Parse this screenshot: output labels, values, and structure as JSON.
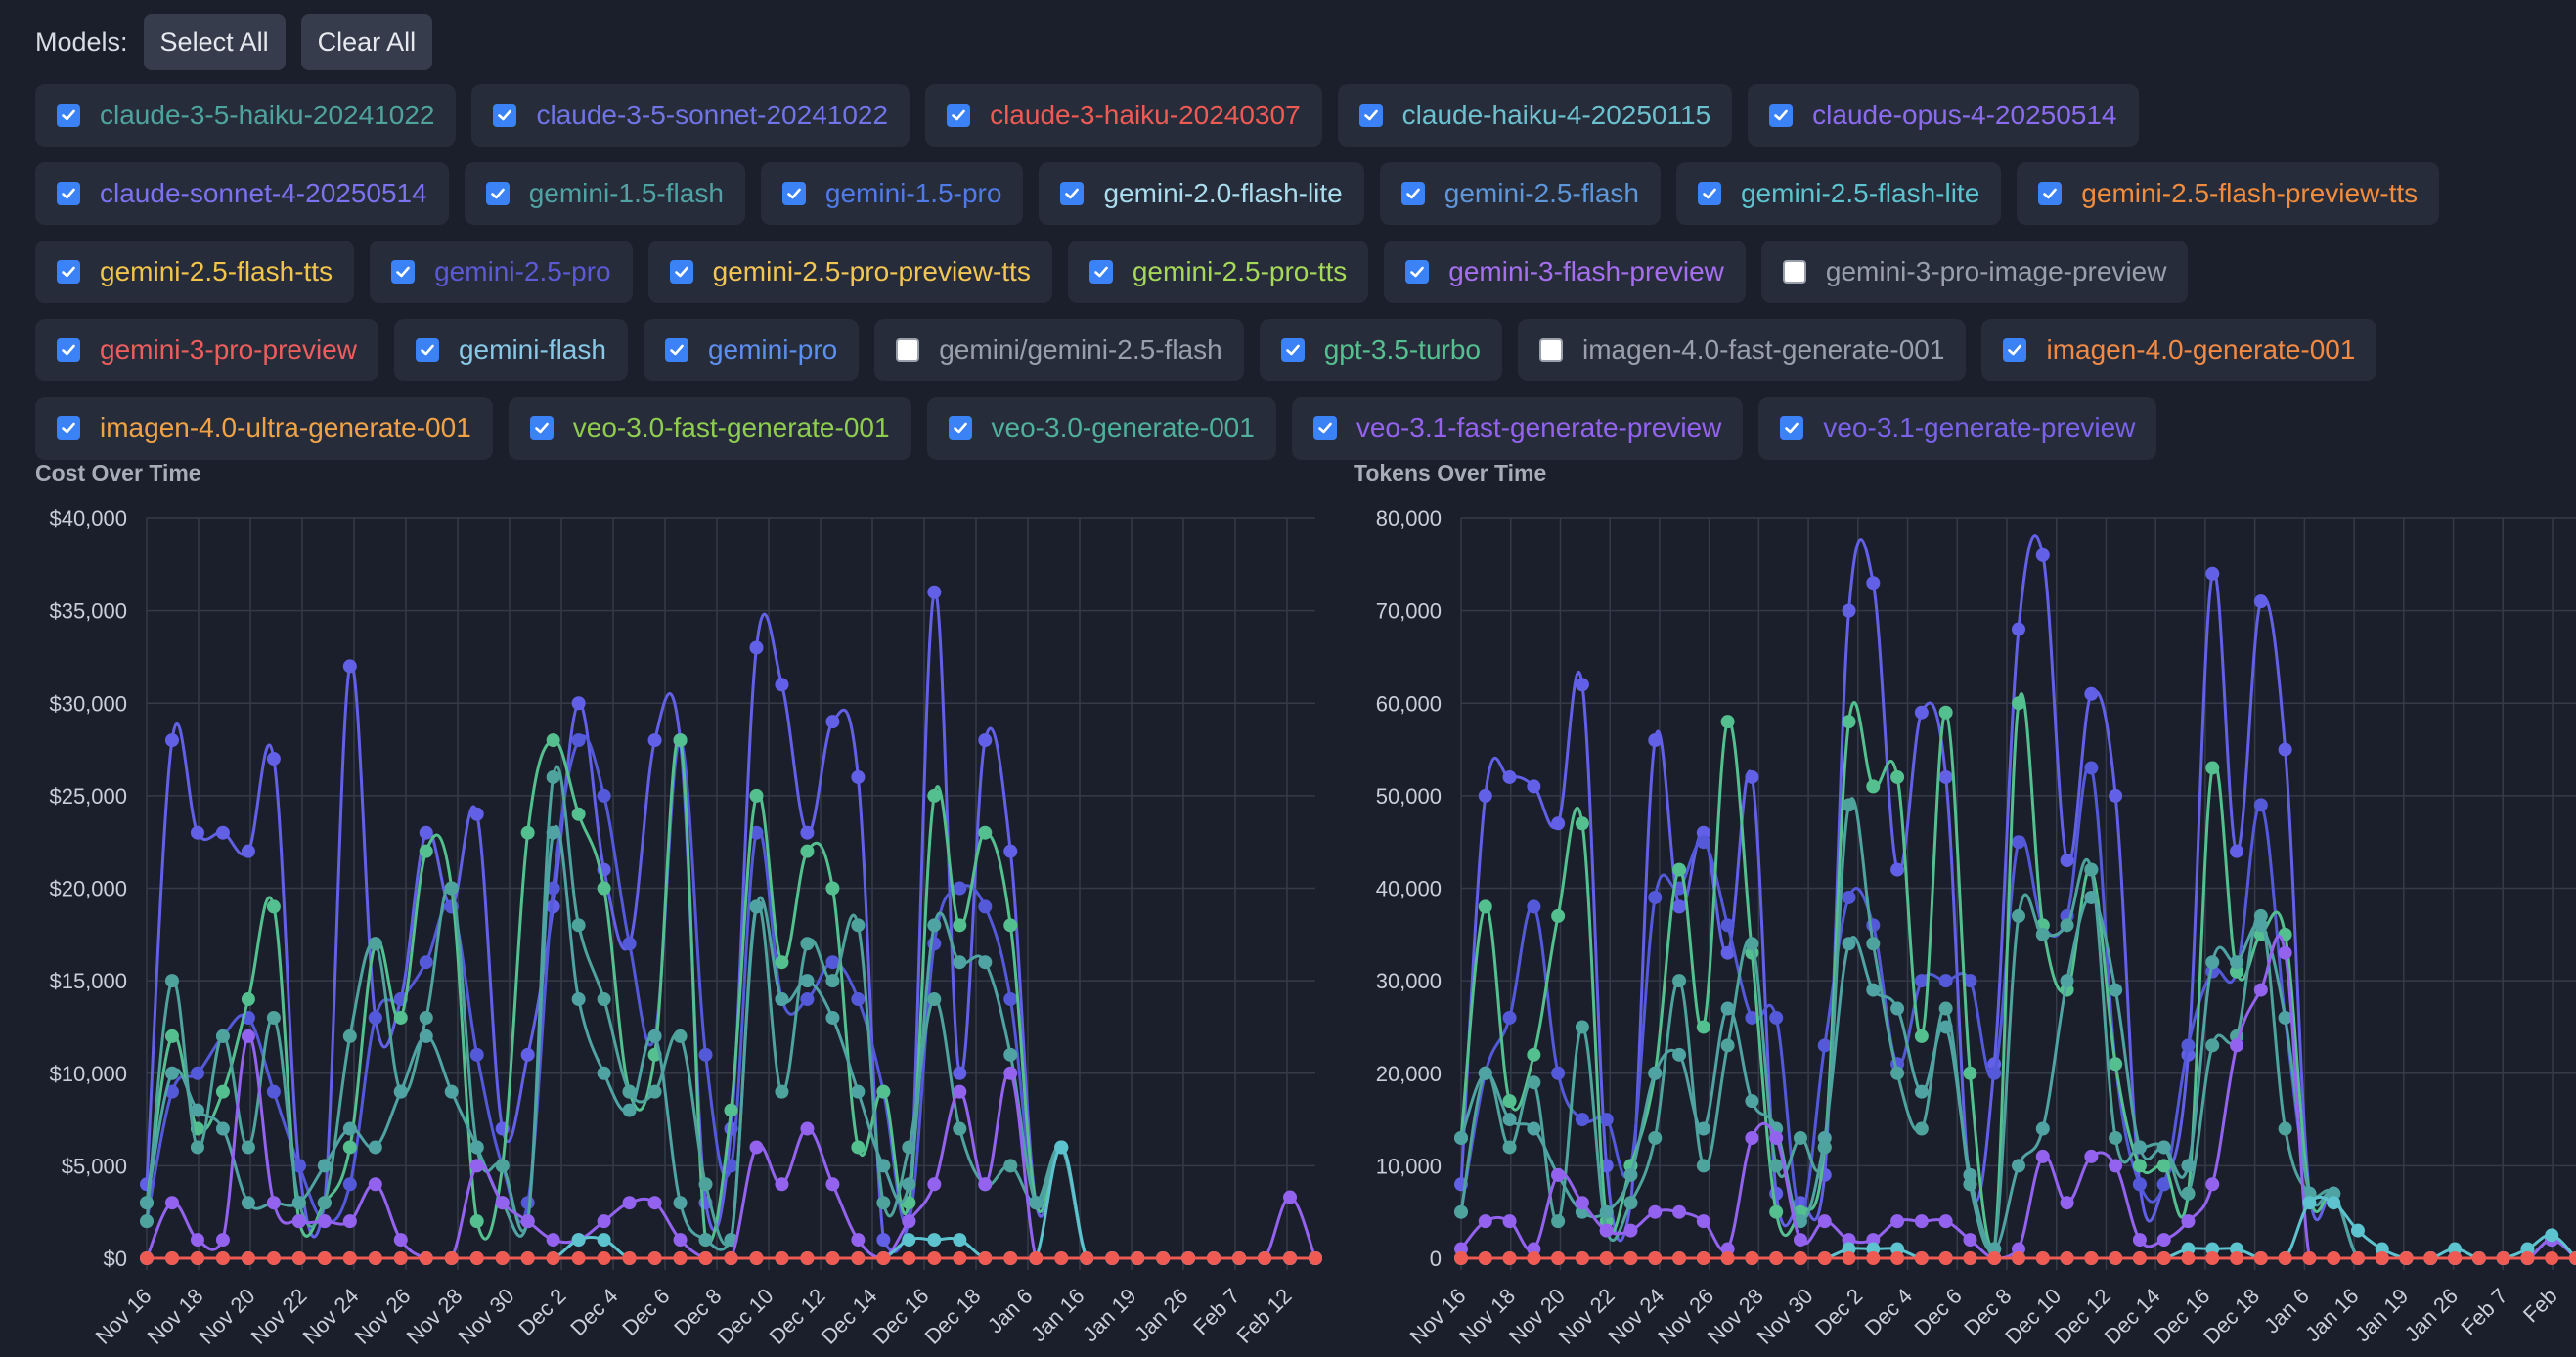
{
  "toolbar": {
    "label": "Models:",
    "select_all": "Select All",
    "clear_all": "Clear All"
  },
  "models": [
    {
      "name": "claude-3-5-haiku-20241022",
      "checked": true,
      "color": "#4ea39d",
      "row": 0
    },
    {
      "name": "claude-3-5-sonnet-20241022",
      "checked": true,
      "color": "#7074e6",
      "row": 0
    },
    {
      "name": "claude-3-haiku-20240307",
      "checked": true,
      "color": "#ef5a52",
      "row": 0
    },
    {
      "name": "claude-haiku-4-20250115",
      "checked": true,
      "color": "#6cc1cf",
      "row": 0
    },
    {
      "name": "claude-opus-4-20250514",
      "checked": true,
      "color": "#8b6cf0",
      "row": 0
    },
    {
      "name": "claude-sonnet-4-20250514",
      "checked": true,
      "color": "#7a72ef",
      "row": 1
    },
    {
      "name": "gemini-1.5-flash",
      "checked": true,
      "color": "#4fa3a3",
      "row": 1
    },
    {
      "name": "gemini-1.5-pro",
      "checked": true,
      "color": "#4f7be9",
      "row": 1
    },
    {
      "name": "gemini-2.0-flash-lite",
      "checked": true,
      "color": "#a9dcec",
      "row": 1
    },
    {
      "name": "gemini-2.5-flash",
      "checked": true,
      "color": "#5d96d9",
      "row": 1
    },
    {
      "name": "gemini-2.5-flash-lite",
      "checked": true,
      "color": "#5cc3cf",
      "row": 1
    },
    {
      "name": "gemini-2.5-flash-preview-tts",
      "checked": true,
      "color": "#f08c3c",
      "row": 1
    },
    {
      "name": "gemini-2.5-flash-tts",
      "checked": true,
      "color": "#f1c44a",
      "row": 2
    },
    {
      "name": "gemini-2.5-pro",
      "checked": true,
      "color": "#5b59d6",
      "row": 2
    },
    {
      "name": "gemini-2.5-pro-preview-tts",
      "checked": true,
      "color": "#f3c653",
      "row": 2
    },
    {
      "name": "gemini-2.5-pro-tts",
      "checked": true,
      "color": "#a6d859",
      "row": 2
    },
    {
      "name": "gemini-3-flash-preview",
      "checked": true,
      "color": "#a66ff0",
      "row": 2
    },
    {
      "name": "gemini-3-pro-image-preview",
      "checked": false,
      "color": "#9aa0ab",
      "row": 2
    },
    {
      "name": "gemini-3-pro-preview",
      "checked": true,
      "color": "#ee5d5d",
      "row": 3
    },
    {
      "name": "gemini-flash",
      "checked": true,
      "color": "#86c8e6",
      "row": 3
    },
    {
      "name": "gemini-pro",
      "checked": true,
      "color": "#5c8ff0",
      "row": 3
    },
    {
      "name": "gemini/gemini-2.5-flash",
      "checked": false,
      "color": "#9aa0ab",
      "row": 3
    },
    {
      "name": "gpt-3.5-turbo",
      "checked": true,
      "color": "#54c08f",
      "row": 3
    },
    {
      "name": "imagen-4.0-fast-generate-001",
      "checked": false,
      "color": "#9aa0ab",
      "row": 3
    },
    {
      "name": "imagen-4.0-generate-001",
      "checked": true,
      "color": "#f28a44",
      "row": 3
    },
    {
      "name": "imagen-4.0-ultra-generate-001",
      "checked": true,
      "color": "#f0a346",
      "row": 4
    },
    {
      "name": "veo-3.0-fast-generate-001",
      "checked": true,
      "color": "#8fcd4f",
      "row": 4
    },
    {
      "name": "veo-3.0-generate-001",
      "checked": true,
      "color": "#4fb09b",
      "row": 4
    },
    {
      "name": "veo-3.1-fast-generate-preview",
      "checked": true,
      "color": "#9363f0",
      "row": 4
    },
    {
      "name": "veo-3.1-generate-preview",
      "checked": true,
      "color": "#7b62ea",
      "row": 4
    }
  ],
  "chart_data": [
    {
      "type": "line",
      "title": "Cost Over Time",
      "ylim": [
        0,
        40000
      ],
      "yticks": [
        "$0",
        "$5,000",
        "$10,000",
        "$15,000",
        "$20,000",
        "$25,000",
        "$30,000",
        "$35,000",
        "$40,000"
      ],
      "xticks": [
        "Nov 16",
        "Nov 18",
        "Nov 20",
        "Nov 22",
        "Nov 24",
        "Nov 26",
        "Nov 28",
        "Nov 30",
        "Dec 2",
        "Dec 4",
        "Dec 6",
        "Dec 8",
        "Dec 10",
        "Dec 12",
        "Dec 14",
        "Dec 16",
        "Dec 18",
        "Jan 6",
        "Jan 16",
        "Jan 19",
        "Jan 26",
        "Feb 7",
        "Feb 12"
      ],
      "grid": true,
      "series": [
        {
          "color": "#6360e8",
          "values": [
            4000,
            28000,
            23000,
            23000,
            22000,
            27000,
            5000,
            3000,
            32000,
            13000,
            14000,
            23000,
            19000,
            24000,
            7000,
            11000,
            19000,
            30000,
            21000,
            17000,
            28000,
            28000,
            3000,
            7000,
            33000,
            31000,
            23000,
            29000,
            26000,
            1000,
            2000,
            36000,
            10000,
            28000,
            22000,
            3000,
            6000,
            0,
            0,
            0,
            0,
            0,
            0,
            0,
            0,
            0,
            0
          ]
        },
        {
          "color": "#5459d9",
          "values": [
            2000,
            9000,
            10000,
            12000,
            13000,
            9000,
            5000,
            2000,
            4000,
            13000,
            14000,
            16000,
            19000,
            11000,
            5000,
            3000,
            20000,
            28000,
            25000,
            17000,
            12000,
            28000,
            11000,
            5000,
            23000,
            14000,
            14000,
            16000,
            14000,
            9000,
            2000,
            17000,
            20000,
            19000,
            14000,
            3000,
            6000,
            0,
            0,
            0,
            0,
            0,
            0,
            0,
            0,
            0,
            0
          ]
        },
        {
          "color": "#54c08f",
          "values": [
            3000,
            12000,
            7000,
            9000,
            14000,
            19000,
            2000,
            3000,
            6000,
            17000,
            13000,
            22000,
            20000,
            2000,
            5000,
            23000,
            28000,
            24000,
            20000,
            9000,
            11000,
            28000,
            1000,
            8000,
            25000,
            16000,
            22000,
            20000,
            6000,
            9000,
            3000,
            25000,
            18000,
            23000,
            18000,
            3000,
            6000,
            0,
            0,
            0,
            0,
            0,
            0,
            0,
            0,
            0,
            0
          ]
        },
        {
          "color": "#4ea39d",
          "values": [
            2000,
            15000,
            6000,
            12000,
            6000,
            13000,
            3000,
            3000,
            12000,
            17000,
            9000,
            13000,
            20000,
            6000,
            5000,
            2000,
            26000,
            18000,
            14000,
            9000,
            9000,
            12000,
            4000,
            1000,
            19000,
            9000,
            17000,
            15000,
            18000,
            3000,
            6000,
            14000,
            7000,
            4000,
            5000,
            3000,
            6000,
            0,
            0,
            0,
            0,
            0,
            0,
            0,
            0,
            0,
            0
          ]
        },
        {
          "color": "#4fa3a3",
          "values": [
            3000,
            10000,
            8000,
            7000,
            3000,
            3000,
            3000,
            5000,
            7000,
            6000,
            9000,
            12000,
            9000,
            6000,
            3000,
            2000,
            23000,
            14000,
            10000,
            8000,
            12000,
            3000,
            1000,
            1000,
            19000,
            14000,
            15000,
            13000,
            9000,
            5000,
            4000,
            18000,
            16000,
            16000,
            11000,
            3000,
            6000,
            0,
            0,
            0,
            0,
            0,
            0,
            0,
            0,
            0,
            0
          ]
        },
        {
          "color": "#9363f0",
          "values": [
            0,
            3000,
            1000,
            1000,
            12000,
            3000,
            2000,
            2000,
            2000,
            4000,
            1000,
            0,
            0,
            5000,
            3000,
            2000,
            1000,
            1000,
            2000,
            3000,
            3000,
            1000,
            0,
            0,
            6000,
            4000,
            7000,
            4000,
            1000,
            0,
            2000,
            4000,
            9000,
            4000,
            10000,
            0,
            0,
            0,
            0,
            0,
            0,
            0,
            0,
            0,
            0,
            3300,
            0
          ]
        },
        {
          "color": "#5cc3cf",
          "values": [
            0,
            0,
            0,
            0,
            0,
            0,
            0,
            0,
            0,
            0,
            0,
            0,
            0,
            0,
            0,
            0,
            0,
            1000,
            1000,
            0,
            0,
            0,
            0,
            0,
            0,
            0,
            0,
            0,
            0,
            0,
            1000,
            1000,
            1000,
            0,
            0,
            0,
            6000,
            0,
            0,
            0,
            0,
            0,
            0,
            0,
            0,
            0,
            0
          ]
        },
        {
          "color": "#ef5a52",
          "values": [
            0,
            0,
            0,
            0,
            0,
            0,
            0,
            0,
            0,
            0,
            0,
            0,
            0,
            0,
            0,
            0,
            0,
            0,
            0,
            0,
            0,
            0,
            0,
            0,
            0,
            0,
            0,
            0,
            0,
            0,
            0,
            0,
            0,
            0,
            0,
            0,
            0,
            0,
            0,
            0,
            0,
            0,
            0,
            0,
            0,
            0,
            0
          ]
        }
      ]
    },
    {
      "type": "line",
      "title": "Tokens Over Time",
      "ylim": [
        0,
        80000
      ],
      "yticks": [
        "0",
        "10,000",
        "20,000",
        "30,000",
        "40,000",
        "50,000",
        "60,000",
        "70,000",
        "80,000"
      ],
      "xticks": [
        "Nov 16",
        "Nov 18",
        "Nov 20",
        "Nov 22",
        "Nov 24",
        "Nov 26",
        "Nov 28",
        "Nov 30",
        "Dec 2",
        "Dec 4",
        "Dec 6",
        "Dec 8",
        "Dec 10",
        "Dec 12",
        "Dec 14",
        "Dec 16",
        "Dec 18",
        "Jan 6",
        "Jan 16",
        "Jan 19",
        "Jan 26",
        "Feb 7",
        "Feb"
      ],
      "grid": true,
      "series": [
        {
          "color": "#6360e8",
          "values": [
            8000,
            50000,
            52000,
            51000,
            47000,
            62000,
            10000,
            6000,
            56000,
            38000,
            46000,
            33000,
            52000,
            7000,
            6000,
            9000,
            70000,
            73000,
            42000,
            59000,
            52000,
            8000,
            21000,
            68000,
            76000,
            43000,
            61000,
            50000,
            8000,
            8000,
            22000,
            74000,
            44000,
            71000,
            55000,
            7000,
            7000,
            0,
            0,
            0,
            0,
            0,
            0,
            0,
            0,
            2000,
            0
          ]
        },
        {
          "color": "#5459d9",
          "values": [
            5000,
            20000,
            26000,
            38000,
            20000,
            15000,
            15000,
            10000,
            39000,
            40000,
            45000,
            36000,
            26000,
            26000,
            5000,
            23000,
            39000,
            36000,
            21000,
            30000,
            30000,
            30000,
            20000,
            45000,
            36000,
            37000,
            53000,
            21000,
            8000,
            8000,
            23000,
            31000,
            31000,
            49000,
            26000,
            7000,
            7000,
            0,
            0,
            0,
            0,
            0,
            0,
            0,
            0,
            2000,
            0
          ]
        },
        {
          "color": "#54c08f",
          "values": [
            13000,
            38000,
            17000,
            22000,
            37000,
            47000,
            4000,
            10000,
            20000,
            42000,
            25000,
            58000,
            33000,
            5000,
            5000,
            12000,
            58000,
            51000,
            52000,
            24000,
            59000,
            20000,
            1000,
            60000,
            36000,
            29000,
            42000,
            21000,
            10000,
            10000,
            7000,
            53000,
            31000,
            35000,
            35000,
            7000,
            7000,
            0,
            0,
            0,
            0,
            0,
            0,
            0,
            0,
            2000,
            0
          ]
        },
        {
          "color": "#4ea39d",
          "values": [
            5000,
            20000,
            12000,
            19000,
            4000,
            25000,
            3000,
            6000,
            13000,
            30000,
            10000,
            23000,
            34000,
            10000,
            13000,
            12000,
            49000,
            34000,
            20000,
            14000,
            27000,
            8000,
            1000,
            37000,
            35000,
            36000,
            42000,
            13000,
            12000,
            12000,
            7000,
            23000,
            24000,
            37000,
            14000,
            7000,
            7000,
            0,
            0,
            0,
            0,
            0,
            0,
            0,
            0,
            2000,
            0
          ]
        },
        {
          "color": "#4fa3a3",
          "values": [
            13000,
            20000,
            15000,
            14000,
            9000,
            5000,
            5000,
            9000,
            20000,
            22000,
            14000,
            27000,
            17000,
            14000,
            4000,
            13000,
            34000,
            29000,
            27000,
            18000,
            25000,
            9000,
            1000,
            10000,
            14000,
            30000,
            39000,
            29000,
            12000,
            12000,
            10000,
            32000,
            32000,
            36000,
            26000,
            7000,
            7000,
            0,
            0,
            0,
            0,
            0,
            0,
            0,
            0,
            2000,
            0
          ]
        },
        {
          "color": "#9363f0",
          "values": [
            1000,
            4000,
            4000,
            1000,
            9000,
            6000,
            3000,
            3000,
            5000,
            5000,
            4000,
            1000,
            13000,
            13000,
            2000,
            4000,
            2000,
            2000,
            4000,
            4000,
            4000,
            2000,
            0,
            1000,
            11000,
            6000,
            11000,
            10000,
            2000,
            2000,
            4000,
            8000,
            23000,
            29000,
            33000,
            0,
            0,
            0,
            0,
            0,
            0,
            0,
            0,
            0,
            0,
            2000,
            0
          ]
        },
        {
          "color": "#5cc3cf",
          "values": [
            0,
            0,
            0,
            0,
            0,
            0,
            0,
            0,
            0,
            0,
            0,
            0,
            0,
            0,
            0,
            0,
            1000,
            1000,
            1000,
            0,
            0,
            0,
            0,
            0,
            0,
            0,
            0,
            0,
            0,
            0,
            1000,
            1000,
            1000,
            0,
            0,
            6000,
            6000,
            3000,
            1000,
            0,
            0,
            1000,
            0,
            0,
            1000,
            2500,
            0
          ]
        },
        {
          "color": "#ef5a52",
          "values": [
            0,
            0,
            0,
            0,
            0,
            0,
            0,
            0,
            0,
            0,
            0,
            0,
            0,
            0,
            0,
            0,
            0,
            0,
            0,
            0,
            0,
            0,
            0,
            0,
            0,
            0,
            0,
            0,
            0,
            0,
            0,
            0,
            0,
            0,
            0,
            0,
            0,
            0,
            0,
            0,
            0,
            0,
            0,
            0,
            0,
            0,
            0
          ]
        }
      ]
    }
  ]
}
